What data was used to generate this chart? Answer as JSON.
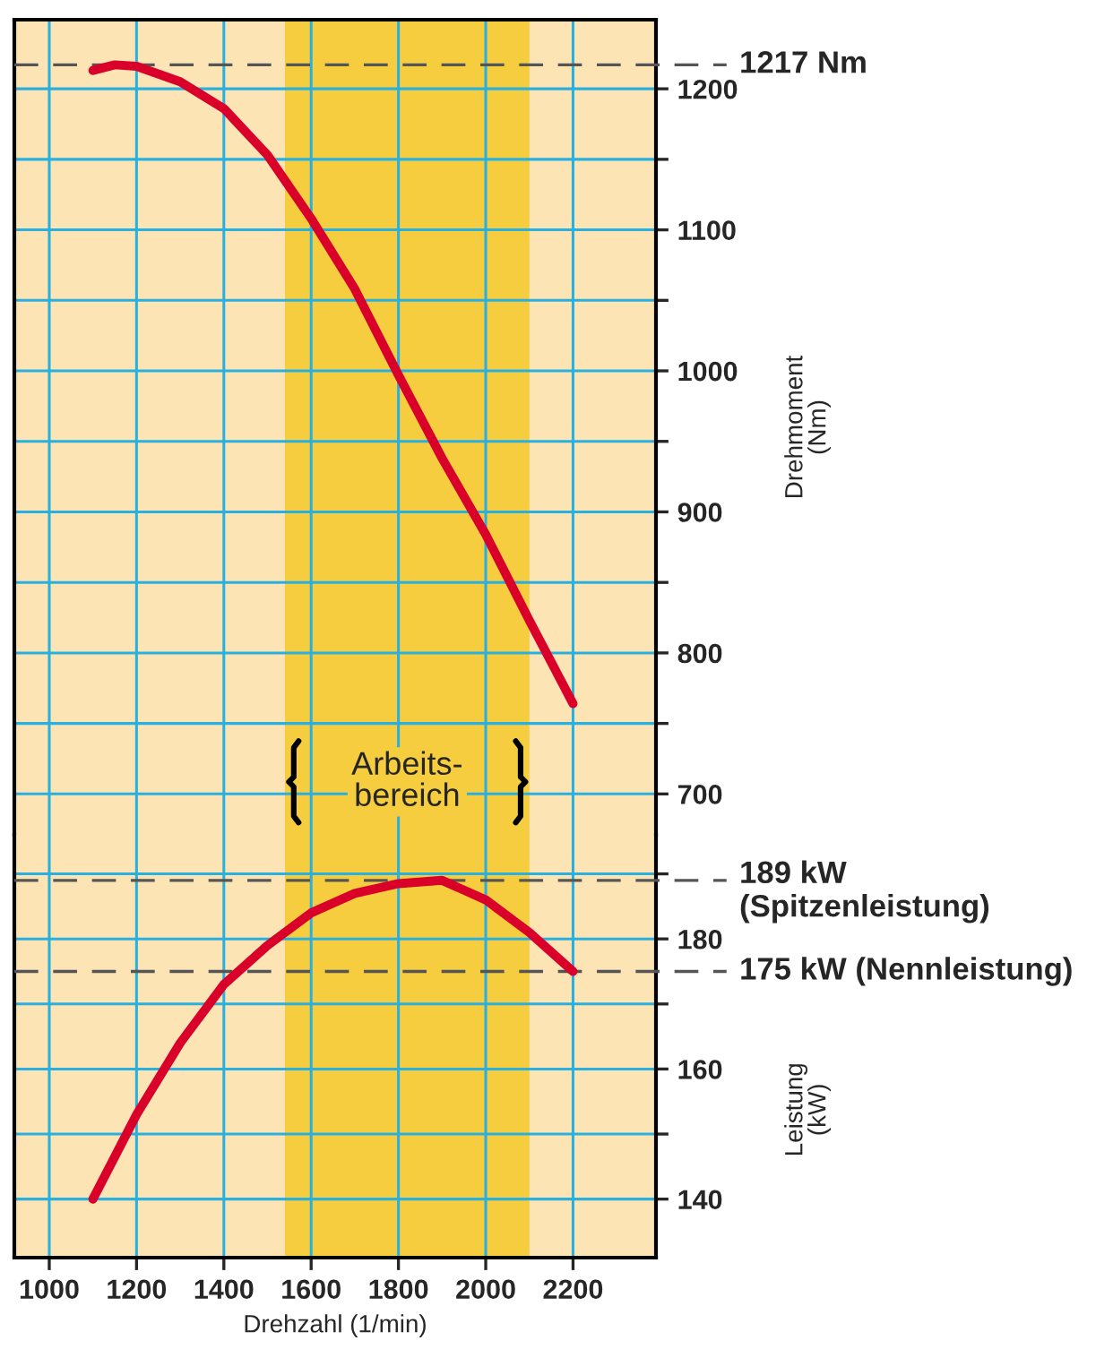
{
  "chart_data": [
    {
      "type": "line",
      "ylabel": "Drehmoment\n(Nm)",
      "x": [
        1100,
        1150,
        1200,
        1300,
        1400,
        1500,
        1600,
        1700,
        1800,
        1900,
        2000,
        2100,
        2200
      ],
      "series": [
        {
          "color": "#d9002a",
          "values": [
            1213,
            1217,
            1216,
            1205,
            1186,
            1153,
            1108,
            1058,
            997,
            938,
            884,
            823,
            764
          ]
        }
      ],
      "xlim": [
        920,
        2390
      ],
      "xticks": [
        1000,
        1200,
        1400,
        1600,
        1800,
        2000,
        2200
      ],
      "ylim": [
        671,
        1249
      ],
      "yticks": [
        700,
        {
          "value": 750,
          "label": null
        },
        800,
        {
          "value": 850,
          "label": null
        },
        900,
        {
          "value": 950,
          "label": null
        },
        1000,
        {
          "value": 1050,
          "label": null
        },
        1100,
        {
          "value": 1150,
          "label": null
        },
        1200
      ],
      "grid": true,
      "tick_labels": "y",
      "bands": [
        {
          "axis": "x",
          "from": 1540,
          "to": 2100,
          "label": "Arbeits-\nbereich",
          "color": "#f5cd3e"
        }
      ],
      "ref_lines": [
        {
          "axis": "y",
          "value": 1217,
          "label": "1217 Nm",
          "color": "#555555",
          "line_style": "dashed"
        }
      ]
    },
    {
      "type": "line",
      "ylabel": "Leistung\n(kW)",
      "xlabel": "Drehzahl (1/min)",
      "x": [
        1100,
        1200,
        1300,
        1400,
        1500,
        1600,
        1700,
        1800,
        1900,
        2000,
        2100,
        2200
      ],
      "series": [
        {
          "color": "#d9002a",
          "values": [
            140,
            153,
            164,
            173,
            179,
            184,
            187,
            188.5,
            189,
            186,
            181,
            175
          ]
        }
      ],
      "xlim": [
        920,
        2390
      ],
      "xticks": [
        1000,
        1200,
        1400,
        1600,
        1800,
        2000,
        2200
      ],
      "ylim": [
        131,
        196
      ],
      "yticks": [
        140,
        {
          "value": 150,
          "label": null
        },
        160,
        {
          "value": 170,
          "label": null
        },
        180,
        {
          "value": 190,
          "label": null
        }
      ],
      "grid": true,
      "bands": [
        {
          "axis": "x",
          "from": 1540,
          "to": 2100,
          "color": "#f5cd3e"
        }
      ],
      "ref_lines": [
        {
          "axis": "y",
          "value": 189,
          "label": "189 kW\n(Spitzenleistung)",
          "color": "#555555",
          "line_style": "dashed"
        },
        {
          "axis": "y",
          "value": 175,
          "label": "175 kW (Nennleistung)",
          "color": "#555555",
          "line_style": "dashed"
        }
      ]
    }
  ]
}
